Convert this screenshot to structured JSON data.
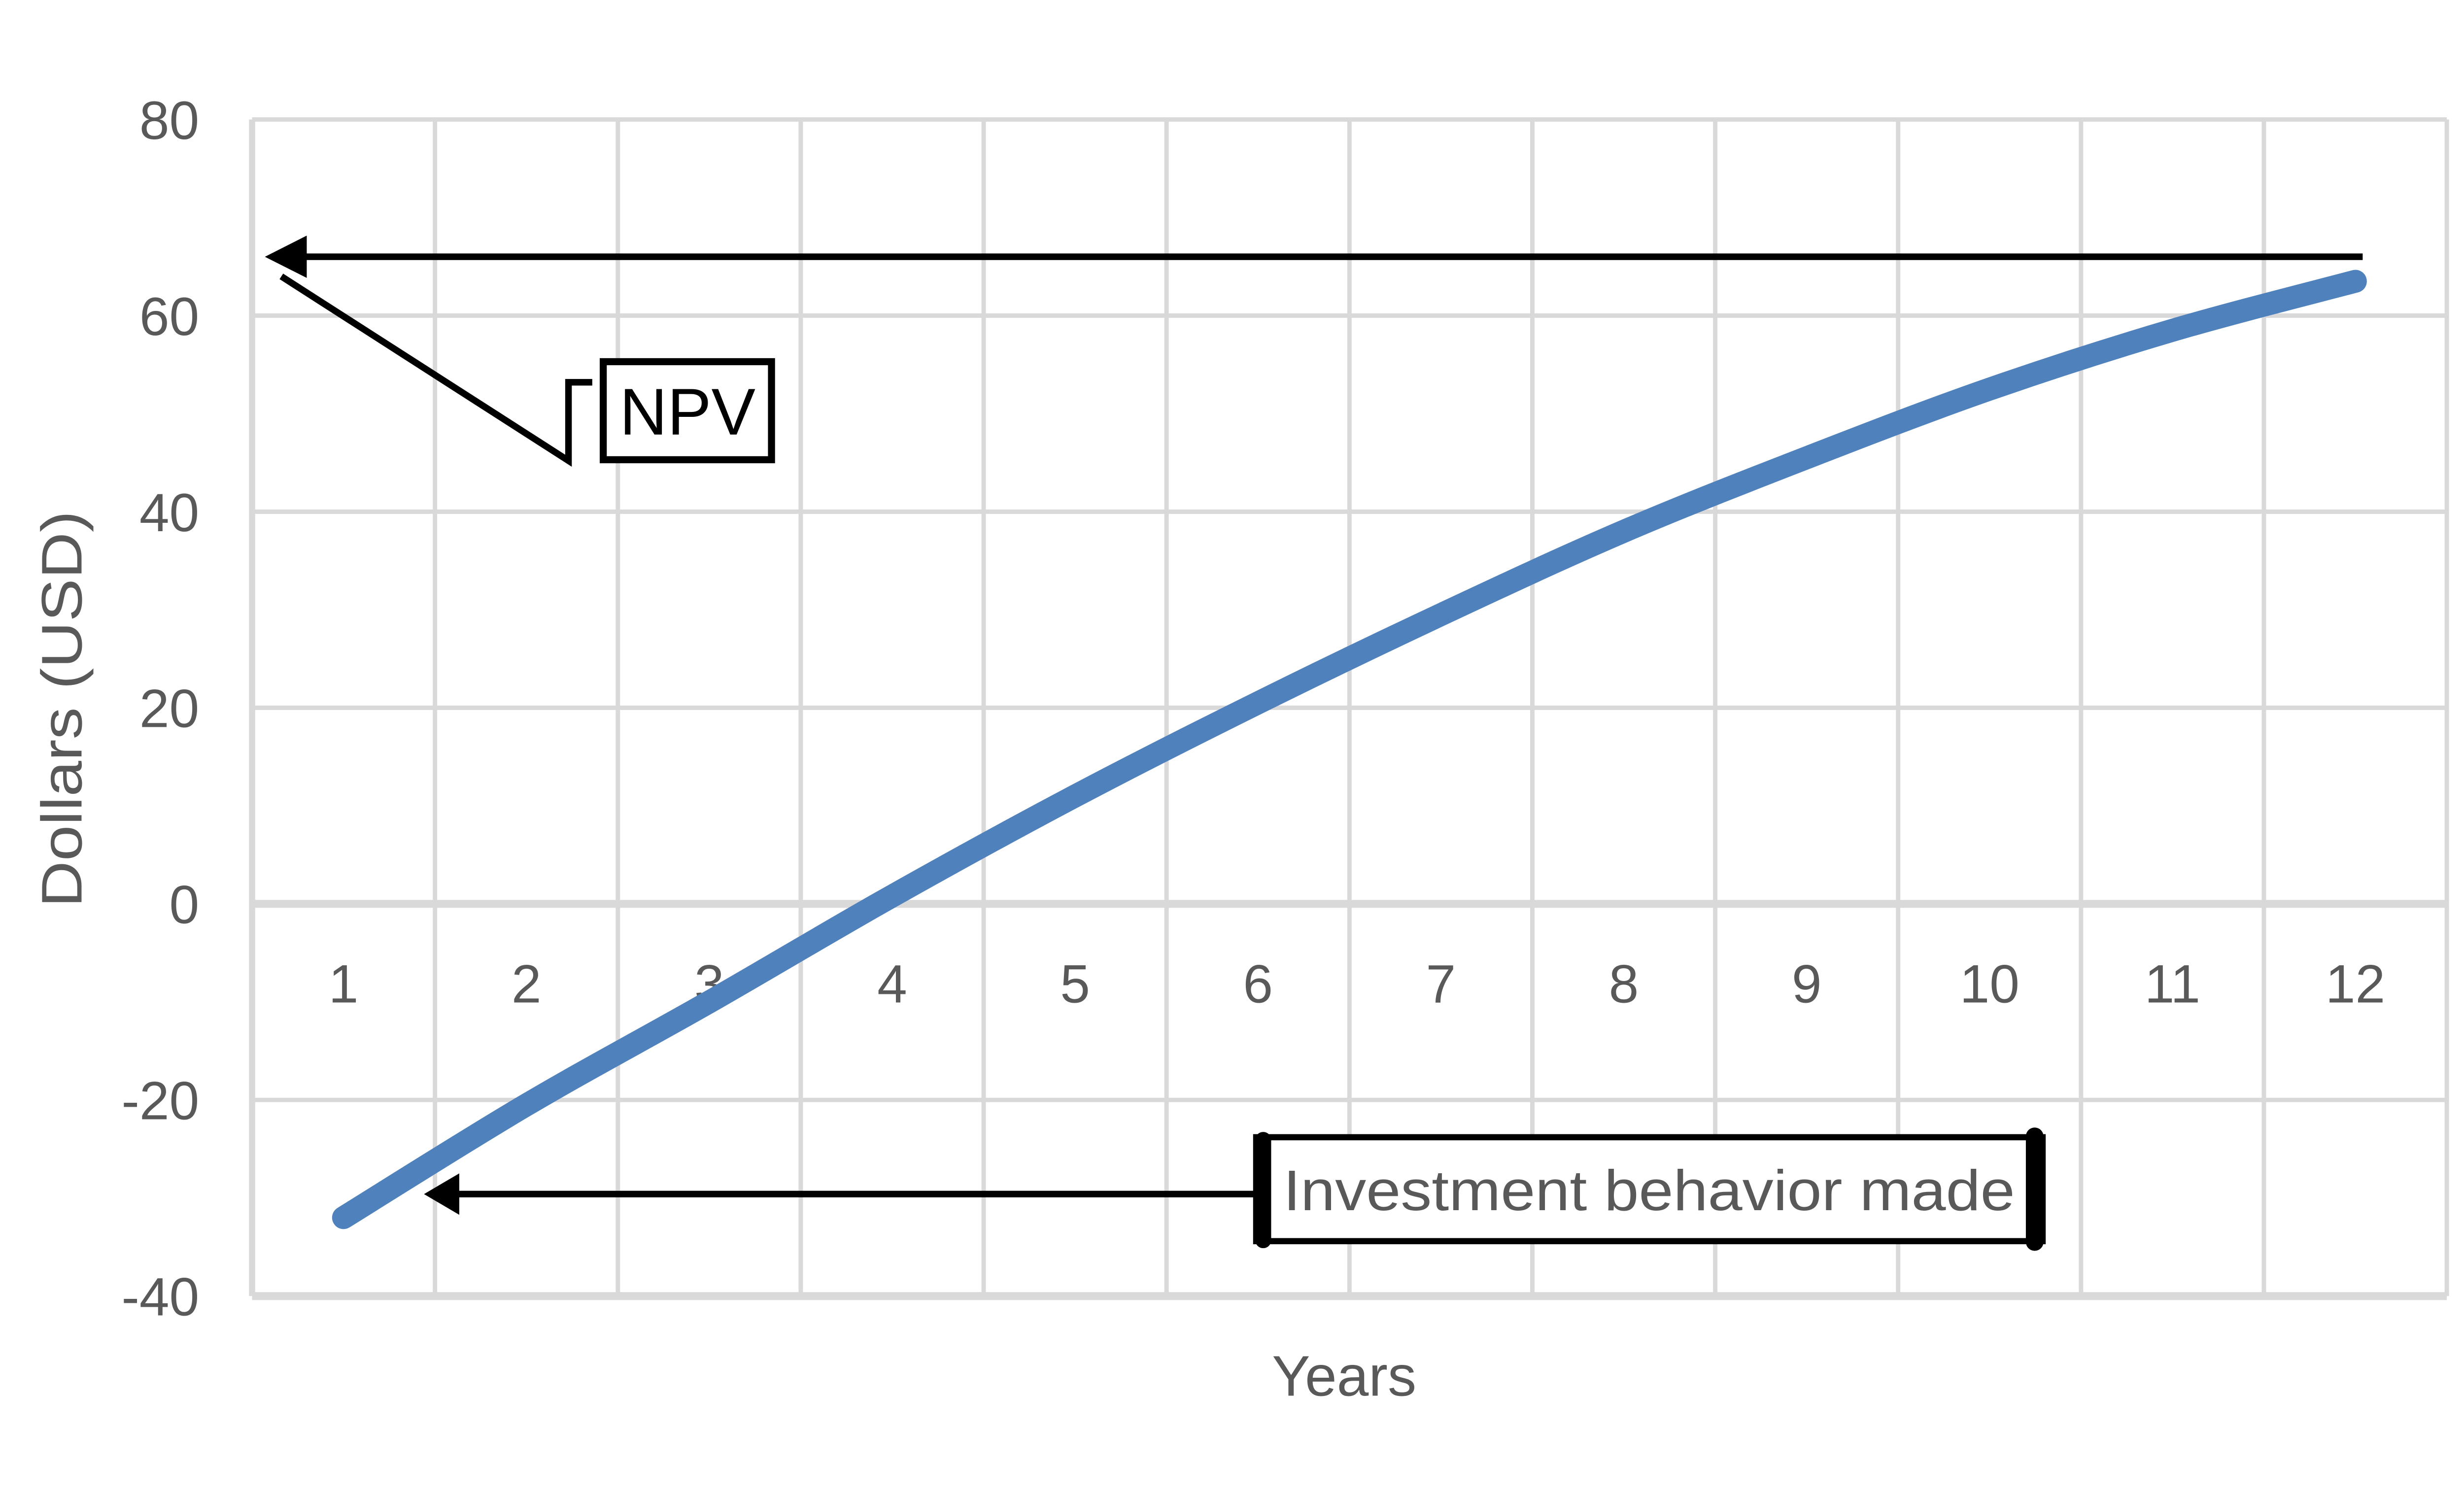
{
  "chart_data": {
    "type": "line",
    "title": "",
    "xlabel": "Years",
    "ylabel": "Dollars (USD)",
    "categories": [
      1,
      2,
      3,
      4,
      5,
      6,
      7,
      8,
      9,
      10,
      11,
      12
    ],
    "series": [
      {
        "name": "NPV",
        "color": "#4f81bd",
        "values": [
          -32,
          -20.5,
          -10,
          0.8,
          11,
          20.5,
          29.5,
          38,
          45.5,
          52.5,
          58.5,
          63.5
        ]
      }
    ],
    "ylim": [
      -40,
      80
    ],
    "yticks": [
      80,
      60,
      40,
      20,
      0,
      -20,
      -40
    ],
    "grid": true,
    "legend": "none",
    "colors": {
      "grid": "#d9d9d9",
      "text": "#595959",
      "annotation": "#000000",
      "background": "#ffffff"
    },
    "annotations": {
      "npv": {
        "label": "NPV",
        "arrow": {
          "y": 66.0,
          "x_from": 12.04,
          "x_tip": 0.57
        },
        "leader": [
          [
            0.66,
            64.0
          ],
          [
            2.23,
            45.2
          ],
          [
            2.23,
            53.2
          ],
          [
            2.36,
            53.2
          ]
        ],
        "box": {
          "x1": 2.42,
          "y1": 55.3,
          "x2": 3.34,
          "y2": 45.3
        }
      },
      "investment": {
        "label": "Investment behavior made",
        "arrow": {
          "y": -29.6,
          "x_from": 5.99,
          "x_tip": 1.44
        },
        "box": {
          "x1": 5.99,
          "y1": -23.8,
          "x2": 10.29,
          "y2": -34.4
        }
      }
    }
  }
}
